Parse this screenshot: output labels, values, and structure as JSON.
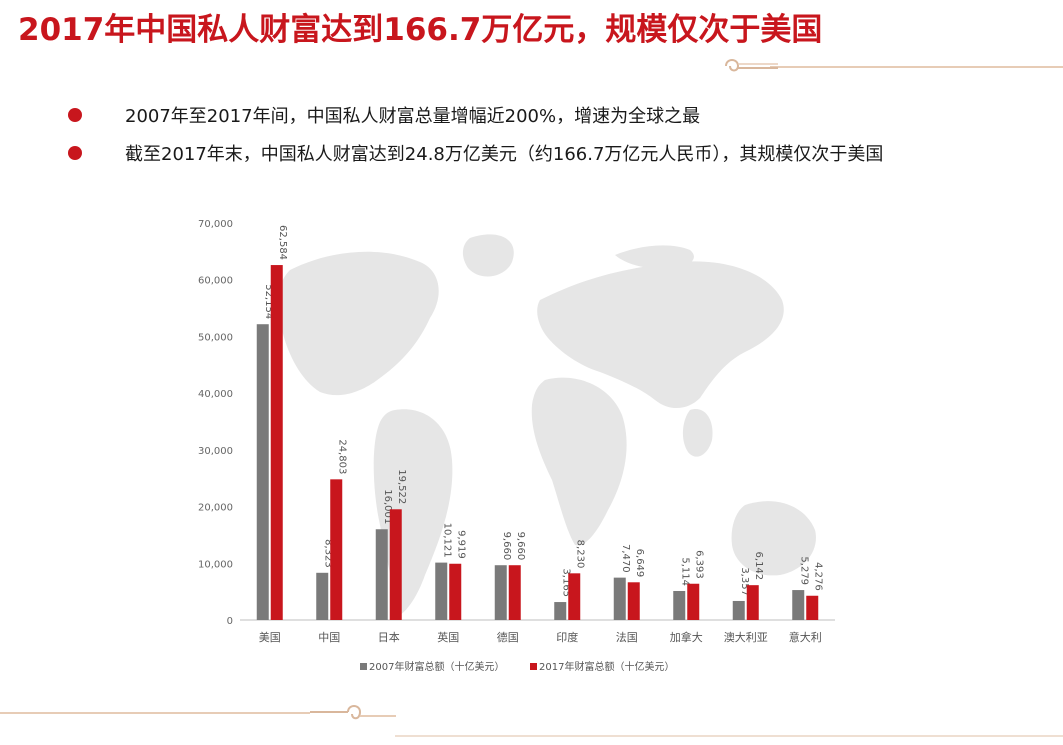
{
  "slide": {
    "title": "2017年中国私人财富达到166.7万亿元，规模仅次于美国",
    "bullets": [
      {
        "text": "2007年至2017年间，中国私人财富总量增幅近200%，增速为全球之最"
      },
      {
        "text": "截至2017年末，中国私人财富达到24.8万亿美元（约166.7万亿元人民币），其规模仅次于美国"
      }
    ],
    "colors": {
      "accent": "#c8161d",
      "gray_series": "#7a7a7a",
      "red_series": "#c8161d",
      "map": "#e4e4e4"
    }
  },
  "chart_data": {
    "type": "bar",
    "categories": [
      "美国",
      "中国",
      "日本",
      "英国",
      "德国",
      "印度",
      "法国",
      "加拿大",
      "澳大利亚",
      "意大利"
    ],
    "series": [
      {
        "name": "2007年财富总额（十亿美元）",
        "values": [
          52154,
          8323,
          16001,
          10121,
          9660,
          3165,
          7470,
          5114,
          3357,
          5279
        ],
        "labels": [
          "52,154",
          "8,323",
          "16,001",
          "10,121",
          "9,660",
          "3,165",
          "7,470",
          "5,114",
          "3,357",
          "5,279"
        ],
        "color": "#7a7a7a"
      },
      {
        "name": "2017年财富总额（十亿美元）",
        "values": [
          62584,
          24803,
          19522,
          9919,
          9660,
          8230,
          6649,
          6393,
          6142,
          4276
        ],
        "labels": [
          "62,584",
          "24,803",
          "19,522",
          "9,919",
          "9,660",
          "8,230",
          "6,649",
          "6,393",
          "6,142",
          "4,276"
        ],
        "color": "#c8161d"
      }
    ],
    "y_ticks": [
      "0",
      "10,000",
      "20,000",
      "30,000",
      "40,000",
      "50,000",
      "60,000",
      "70,000"
    ],
    "ylim": [
      0,
      70000
    ],
    "legend_position": "bottom",
    "grid": false
  }
}
